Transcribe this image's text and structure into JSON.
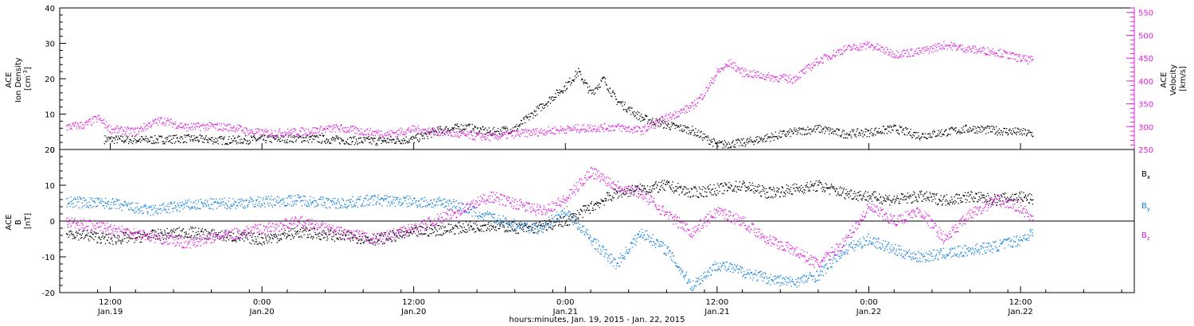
{
  "chart_data": [
    {
      "type": "scatter",
      "ylabel_left": [
        "ACE",
        "Ion Density",
        "[cm",
        "-3",
        "]"
      ],
      "ylabel_right": [
        "ACE",
        "Velocity",
        "[km/s]"
      ],
      "ylim_left": [
        0,
        40
      ],
      "ylim_right": [
        250,
        560
      ],
      "yticks_left": [
        "0",
        "10",
        "20",
        "30",
        "40"
      ],
      "yticks_right": [
        "250",
        "300",
        "350",
        "400",
        "450",
        "500",
        "550"
      ],
      "series": [
        {
          "color": "#000000",
          "axis": "left",
          "points": [
            [
              -12.5,
              3
            ],
            [
              -9,
              2.8
            ],
            [
              -6,
              3.2
            ],
            [
              -3,
              2.7
            ],
            [
              0,
              3
            ],
            [
              3,
              3.3
            ],
            [
              6,
              2.8
            ],
            [
              9,
              2.5
            ],
            [
              12,
              3
            ],
            [
              14,
              5.5
            ],
            [
              16,
              6.5
            ],
            [
              18,
              5
            ],
            [
              20,
              6
            ],
            [
              22,
              12
            ],
            [
              24,
              18
            ],
            [
              25,
              22
            ],
            [
              26,
              16
            ],
            [
              27,
              20
            ],
            [
              28,
              14
            ],
            [
              30,
              9
            ],
            [
              32,
              7
            ],
            [
              34,
              5.5
            ],
            [
              36,
              1.5
            ],
            [
              38,
              2
            ],
            [
              40,
              3.5
            ],
            [
              42,
              5
            ],
            [
              44,
              6
            ],
            [
              46,
              4.5
            ],
            [
              48,
              5
            ],
            [
              50,
              6
            ],
            [
              52,
              4
            ],
            [
              54,
              5
            ],
            [
              56,
              6
            ],
            [
              58,
              5.5
            ],
            [
              60,
              5
            ],
            [
              61,
              4.5
            ]
          ]
        },
        {
          "color": "#e020e0",
          "axis": "right",
          "points": [
            [
              -15.5,
              300
            ],
            [
              -14,
              305
            ],
            [
              -13,
              320
            ],
            [
              -12,
              295
            ],
            [
              -10,
              290
            ],
            [
              -9,
              305
            ],
            [
              -8,
              315
            ],
            [
              -6,
              300
            ],
            [
              -4,
              302
            ],
            [
              -2,
              298
            ],
            [
              -1,
              290
            ],
            [
              0,
              287
            ],
            [
              2,
              288
            ],
            [
              4,
              292
            ],
            [
              6,
              298
            ],
            [
              8,
              290
            ],
            [
              10,
              285
            ],
            [
              12,
              295
            ],
            [
              14,
              290
            ],
            [
              16,
              282
            ],
            [
              18,
              278
            ],
            [
              20,
              285
            ],
            [
              22,
              290
            ],
            [
              24,
              295
            ],
            [
              26,
              298
            ],
            [
              28,
              300
            ],
            [
              30,
              292
            ],
            [
              32,
              320
            ],
            [
              34,
              345
            ],
            [
              35,
              375
            ],
            [
              36,
              420
            ],
            [
              37,
              440
            ],
            [
              38,
              420
            ],
            [
              40,
              410
            ],
            [
              42,
              405
            ],
            [
              44,
              445
            ],
            [
              46,
              470
            ],
            [
              48,
              480
            ],
            [
              50,
              460
            ],
            [
              52,
              465
            ],
            [
              54,
              480
            ],
            [
              56,
              470
            ],
            [
              58,
              465
            ],
            [
              60,
              450
            ],
            [
              61,
              445
            ]
          ]
        }
      ]
    },
    {
      "type": "scatter",
      "ylabel_left": [
        "ACE",
        "B",
        "[nT]"
      ],
      "ylim": [
        -20,
        20
      ],
      "yticks": [
        "-20",
        "-10",
        "0",
        "10",
        "20"
      ],
      "reference_line": 0,
      "legend": [
        "B",
        "x",
        "B",
        "y",
        "B",
        "z"
      ],
      "series": [
        {
          "name_glyph": "B",
          "name_sub": "x",
          "color": "#000000",
          "points": [
            [
              -15.5,
              -3
            ],
            [
              -12,
              -5
            ],
            [
              -9,
              -4
            ],
            [
              -6,
              -3
            ],
            [
              -3,
              -4
            ],
            [
              0,
              -5
            ],
            [
              3,
              -3
            ],
            [
              6,
              -4
            ],
            [
              9,
              -5
            ],
            [
              12,
              -3
            ],
            [
              15,
              -2
            ],
            [
              18,
              -1
            ],
            [
              21,
              -2
            ],
            [
              24,
              0
            ],
            [
              26,
              4
            ],
            [
              28,
              8
            ],
            [
              30,
              9
            ],
            [
              32,
              10
            ],
            [
              34,
              8
            ],
            [
              36,
              9
            ],
            [
              38,
              10
            ],
            [
              40,
              8
            ],
            [
              42,
              9
            ],
            [
              44,
              10
            ],
            [
              46,
              8
            ],
            [
              48,
              7
            ],
            [
              50,
              6
            ],
            [
              52,
              7
            ],
            [
              54,
              6
            ],
            [
              56,
              7
            ],
            [
              58,
              6
            ],
            [
              60,
              7
            ],
            [
              61,
              6
            ]
          ]
        },
        {
          "name_glyph": "B",
          "name_sub": "y",
          "color": "#1482e0",
          "points": [
            [
              -15.5,
              5.5
            ],
            [
              -12,
              5
            ],
            [
              -9,
              3
            ],
            [
              -6,
              4.5
            ],
            [
              -3,
              5
            ],
            [
              0,
              5.5
            ],
            [
              3,
              6
            ],
            [
              6,
              5
            ],
            [
              9,
              6
            ],
            [
              12,
              5.5
            ],
            [
              15,
              5
            ],
            [
              18,
              1
            ],
            [
              20,
              -1
            ],
            [
              22,
              -2
            ],
            [
              24,
              3
            ],
            [
              26,
              -5
            ],
            [
              28,
              -12
            ],
            [
              30,
              -3
            ],
            [
              32,
              -8
            ],
            [
              34,
              -18
            ],
            [
              36,
              -12
            ],
            [
              38,
              -14
            ],
            [
              40,
              -16
            ],
            [
              42,
              -17
            ],
            [
              44,
              -15
            ],
            [
              46,
              -8
            ],
            [
              48,
              -5
            ],
            [
              50,
              -8
            ],
            [
              52,
              -10
            ],
            [
              54,
              -9
            ],
            [
              56,
              -8
            ],
            [
              58,
              -7
            ],
            [
              60,
              -5
            ],
            [
              61,
              -3
            ]
          ]
        },
        {
          "name_glyph": "B",
          "name_sub": "z",
          "color": "#e020e0",
          "points": [
            [
              -15.5,
              0
            ],
            [
              -12,
              -2
            ],
            [
              -9,
              -4
            ],
            [
              -6,
              -6
            ],
            [
              -3,
              -4
            ],
            [
              0,
              -2
            ],
            [
              3,
              0
            ],
            [
              6,
              -3
            ],
            [
              9,
              -5
            ],
            [
              12,
              -2
            ],
            [
              15,
              2
            ],
            [
              18,
              7
            ],
            [
              20,
              5
            ],
            [
              22,
              3
            ],
            [
              24,
              6
            ],
            [
              26,
              14
            ],
            [
              28,
              10
            ],
            [
              30,
              8
            ],
            [
              32,
              2
            ],
            [
              34,
              -3
            ],
            [
              36,
              3
            ],
            [
              38,
              0
            ],
            [
              40,
              -5
            ],
            [
              42,
              -8
            ],
            [
              44,
              -12
            ],
            [
              46,
              -6
            ],
            [
              48,
              4
            ],
            [
              50,
              0
            ],
            [
              52,
              3
            ],
            [
              54,
              -5
            ],
            [
              56,
              2
            ],
            [
              58,
              6
            ],
            [
              60,
              4
            ],
            [
              61,
              0
            ]
          ]
        }
      ]
    }
  ],
  "x_axis": {
    "range_hours": [
      -16,
      69
    ],
    "ticks": [
      {
        "hours": -12,
        "time": "12:00",
        "date": "Jan.19"
      },
      {
        "hours": 0,
        "time": "0:00",
        "date": "Jan.20"
      },
      {
        "hours": 12,
        "time": "12:00",
        "date": "Jan.20"
      },
      {
        "hours": 24,
        "time": "0:00",
        "date": "Jan.21"
      },
      {
        "hours": 36,
        "time": "12:00",
        "date": "Jan.21"
      },
      {
        "hours": 48,
        "time": "0:00",
        "date": "Jan.22"
      },
      {
        "hours": 60,
        "time": "12:00",
        "date": "Jan.22"
      }
    ],
    "label": "hours:minutes, Jan. 19, 2015 - Jan. 22, 2015"
  },
  "colors": {
    "density": "#000000",
    "velocity": "#e020e0",
    "bx": "#000000",
    "by": "#1482e0",
    "bz": "#e020e0"
  }
}
